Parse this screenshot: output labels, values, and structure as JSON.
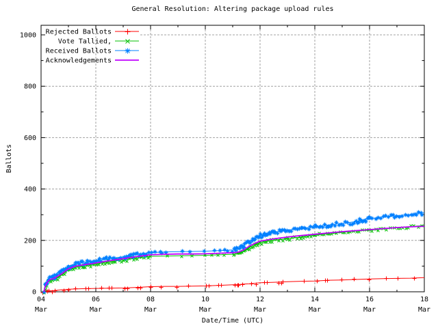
{
  "chart_data": {
    "type": "line",
    "title": "General Resolution: Altering package upload rules",
    "xlabel": "Date/Time (UTC)",
    "ylabel": "Ballots",
    "ylim": [
      0,
      1000
    ],
    "x_range_days": [
      4,
      18
    ],
    "grid": "dashed gray, major ticks only",
    "legend_position": "top-left inside plot",
    "x_ticks": [
      {
        "day": 4,
        "label": "04",
        "sub": "Mar"
      },
      {
        "day": 6,
        "label": "06",
        "sub": "Mar"
      },
      {
        "day": 8,
        "label": "08",
        "sub": "Mar"
      },
      {
        "day": 10,
        "label": "10",
        "sub": "Mar"
      },
      {
        "day": 12,
        "label": "12",
        "sub": "Mar"
      },
      {
        "day": 14,
        "label": "14",
        "sub": "Mar"
      },
      {
        "day": 16,
        "label": "16",
        "sub": "Mar"
      },
      {
        "day": 18,
        "label": "18",
        "sub": "Mar"
      }
    ],
    "y_ticks": [
      0,
      200,
      400,
      600,
      800,
      1000
    ],
    "y_minor_ticks": [
      100,
      300,
      500,
      700,
      900
    ],
    "x_minor_tick_days": [
      5,
      7,
      9,
      11,
      13,
      15,
      17
    ],
    "x": [
      4.1,
      4.15,
      4.2,
      4.3,
      4.5,
      4.75,
      5,
      5.25,
      5.5,
      6,
      6.5,
      7,
      7.5,
      8,
      8.5,
      9,
      9.5,
      10,
      10.5,
      11,
      11.2,
      11.4,
      11.6,
      11.8,
      12,
      12.5,
      13,
      13.5,
      14,
      14.5,
      15,
      15.5,
      16,
      16.5,
      17,
      17.5,
      18
    ],
    "x_unit": "day of March (UTC)",
    "series": [
      {
        "name": "Rejected Ballots",
        "color": "#ff0000",
        "marker": "plus",
        "density": "sparse",
        "values": [
          0,
          1,
          2,
          3,
          5,
          8,
          10,
          11,
          12,
          13,
          14,
          15,
          17,
          20,
          21,
          21,
          22,
          23,
          25,
          27,
          28,
          30,
          31,
          33,
          35,
          37,
          39,
          41,
          42,
          45,
          46,
          48,
          50,
          51,
          52,
          53,
          55
        ]
      },
      {
        "name": "Vote Tallied,",
        "color": "#00c000",
        "marker": "cross",
        "density": "dense",
        "values": [
          0,
          18,
          30,
          42,
          50,
          65,
          85,
          95,
          100,
          108,
          117,
          124,
          132,
          138,
          139,
          140,
          141,
          142,
          144,
          146,
          149,
          158,
          172,
          183,
          192,
          201,
          207,
          213,
          220,
          226,
          231,
          236,
          240,
          245,
          249,
          254,
          258
        ]
      },
      {
        "name": "Received Ballots",
        "color": "#0080ff",
        "marker": "asterisk",
        "density": "dense",
        "values": [
          0,
          25,
          40,
          52,
          62,
          80,
          100,
          108,
          113,
          122,
          130,
          136,
          145,
          152,
          155,
          156,
          157,
          158,
          160,
          163,
          168,
          180,
          196,
          208,
          220,
          232,
          240,
          247,
          253,
          260,
          267,
          273,
          285,
          290,
          296,
          301,
          308
        ]
      },
      {
        "name": "Acknowledgements",
        "color": "#c000ff",
        "marker": "none",
        "density": "line",
        "values": [
          0,
          20,
          33,
          46,
          54,
          70,
          90,
          99,
          104,
          112,
          121,
          129,
          137,
          144,
          146,
          147,
          147,
          148,
          150,
          152,
          154,
          163,
          177,
          188,
          197,
          206,
          213,
          219,
          224,
          229,
          234,
          238,
          242,
          246,
          250,
          253,
          255
        ]
      }
    ],
    "colors": {
      "axis": "#000000",
      "grid": "#a0a0a0",
      "background": "#ffffff"
    }
  }
}
